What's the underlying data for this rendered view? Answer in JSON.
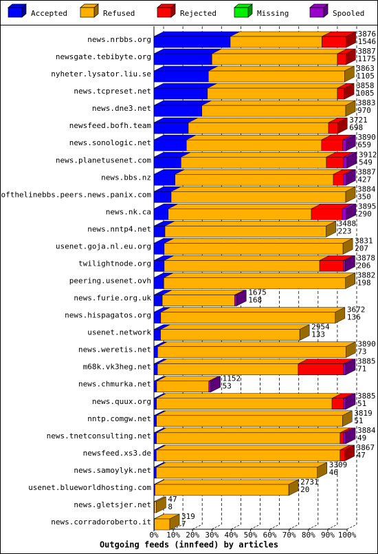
{
  "chart_data": {
    "type": "bar3d-stacked-horizontal",
    "title": "Outgoing feeds (innfeed) by articles",
    "categories": [
      "news.nrbbs.org",
      "newsgate.tebibyte.org",
      "nyheter.lysator.liu.se",
      "news.tcpreset.net",
      "news.dne3.net",
      "newsfeed.bofh.team",
      "news.sonologic.net",
      "news.planetusenet.com",
      "news.bbs.nz",
      "endofthelinebbs.peers.news.panix.com",
      "news.nk.ca",
      "news.nntp4.net",
      "usenet.goja.nl.eu.org",
      "twilightnode.org",
      "peering.usenet.ovh",
      "news.furie.org.uk",
      "news.hispagatos.org",
      "usenet.network",
      "news.weretis.net",
      "m68k.vk3heg.net",
      "news.chmurka.net",
      "news.quux.org",
      "nntp.comgw.net",
      "news.tnetconsulting.net",
      "newsfeed.xs3.de",
      "news.samoylyk.net",
      "usenet.blueworldhosting.com",
      "news.gletsjer.net",
      "news.corradoroberto.it"
    ],
    "article_totals": [
      3876,
      3887,
      3863,
      3858,
      3883,
      3721,
      3890,
      3912,
      3887,
      3884,
      3895,
      3488,
      3831,
      3878,
      3882,
      1675,
      3672,
      2954,
      3890,
      3885,
      1152,
      3885,
      3819,
      3884,
      3867,
      3309,
      2731,
      47,
      319
    ],
    "accepted_counts": [
      1546,
      1175,
      1105,
      1085,
      970,
      698,
      659,
      549,
      427,
      350,
      290,
      223,
      207,
      206,
      198,
      168,
      136,
      133,
      73,
      71,
      53,
      51,
      51,
      49,
      47,
      46,
      20,
      8,
      7
    ],
    "series": [
      {
        "name": "Accepted",
        "color": "#0000ff",
        "values": [
          39.5,
          30,
          28.2,
          27.7,
          24.8,
          17.8,
          16.8,
          14,
          10.9,
          8.9,
          7.4,
          5.7,
          5.3,
          5.3,
          5.1,
          4.3,
          3.5,
          3.4,
          1.9,
          1.8,
          1.4,
          1.3,
          1.3,
          1.3,
          1.2,
          1.2,
          0.5,
          0.2,
          0.2
        ]
      },
      {
        "name": "Refused",
        "color": "#ffb000",
        "values": [
          47.5,
          65,
          70.5,
          67.3,
          74.5,
          72.6,
          70,
          75.3,
          82,
          90.4,
          74.1,
          83.5,
          92.6,
          80.5,
          94.1,
          37.5,
          90.4,
          72.1,
          97.5,
          72.9,
          27,
          90.9,
          96.3,
          95.1,
          95.2,
          83.4,
          69.3,
          1.0,
          8.0
        ]
      },
      {
        "name": "Rejected",
        "color": "#ff0000",
        "values": [
          12.5,
          4.4,
          0,
          3.6,
          0,
          4.7,
          11,
          8.9,
          5.3,
          0,
          16,
          0,
          0,
          12.4,
          0,
          0,
          0,
          0,
          0,
          23.5,
          0,
          6.0,
          0,
          1.8,
          2.4,
          0,
          0,
          0,
          0
        ]
      },
      {
        "name": "Missing",
        "color": "#00ee00",
        "values": [
          0,
          0,
          0,
          0,
          0,
          0,
          0,
          0,
          0,
          0,
          0,
          0,
          0,
          0,
          0,
          0,
          0,
          0,
          0,
          0,
          0,
          0,
          0,
          0,
          0,
          0,
          0,
          0,
          0
        ]
      },
      {
        "name": "Spooled",
        "color": "#9900cc",
        "values": [
          0,
          0,
          0,
          0,
          0,
          0,
          1.6,
          1.8,
          1.2,
          0,
          2.1,
          0,
          0,
          0.9,
          0,
          1.0,
          0,
          0,
          0,
          1.1,
          1.0,
          1.1,
          0,
          1.1,
          0,
          0,
          0,
          0,
          0
        ]
      }
    ],
    "xlim": [
      0,
      100
    ],
    "xticks": [
      {
        "value": 0,
        "label": "0%"
      },
      {
        "value": 10,
        "label": "10%"
      },
      {
        "value": 20,
        "label": "20%"
      },
      {
        "value": 30,
        "label": "30%"
      },
      {
        "value": 40,
        "label": "40%"
      },
      {
        "value": 50,
        "label": "50%"
      },
      {
        "value": 60,
        "label": "60%"
      },
      {
        "value": 70,
        "label": "70%"
      },
      {
        "value": 80,
        "label": "80%"
      },
      {
        "value": 90,
        "label": "90%"
      },
      {
        "value": 100,
        "label": "100%"
      }
    ],
    "grid": true
  }
}
